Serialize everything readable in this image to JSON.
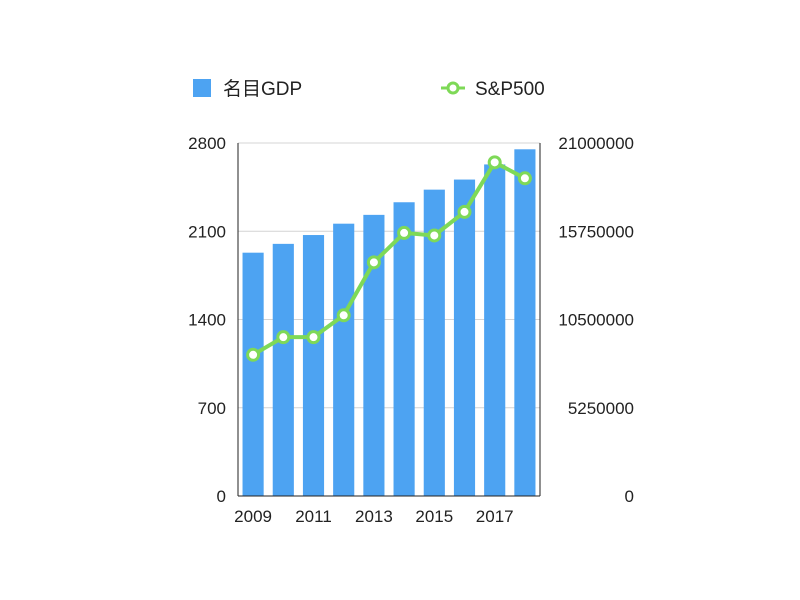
{
  "chart_data": {
    "type": "bar+line",
    "categories": [
      "2009",
      "2010",
      "2011",
      "2012",
      "2013",
      "2014",
      "2015",
      "2016",
      "2017",
      "2018"
    ],
    "x_tick_labels": [
      "2009",
      "2011",
      "2013",
      "2015",
      "2017"
    ],
    "series": [
      {
        "name": "名目GDP",
        "type": "bar",
        "axis": "left",
        "color": "#4da3f2",
        "values": [
          1930,
          2000,
          2070,
          2160,
          2230,
          2330,
          2430,
          2510,
          2630,
          2750
        ]
      },
      {
        "name": "S&P500",
        "type": "line",
        "axis": "right",
        "color": "#7ed957",
        "values": [
          8400000,
          9450000,
          9450000,
          10750000,
          13900000,
          15650000,
          15500000,
          16900000,
          19850000,
          18900000
        ]
      }
    ],
    "y_left": {
      "range": [
        0,
        2800
      ],
      "ticks": [
        "0",
        "700",
        "1400",
        "2100",
        "2800"
      ]
    },
    "y_right": {
      "range": [
        0,
        21000000
      ],
      "ticks": [
        "0",
        "5250000",
        "10500000",
        "15750000",
        "21000000"
      ]
    },
    "legend_position": "top",
    "grid": true
  }
}
